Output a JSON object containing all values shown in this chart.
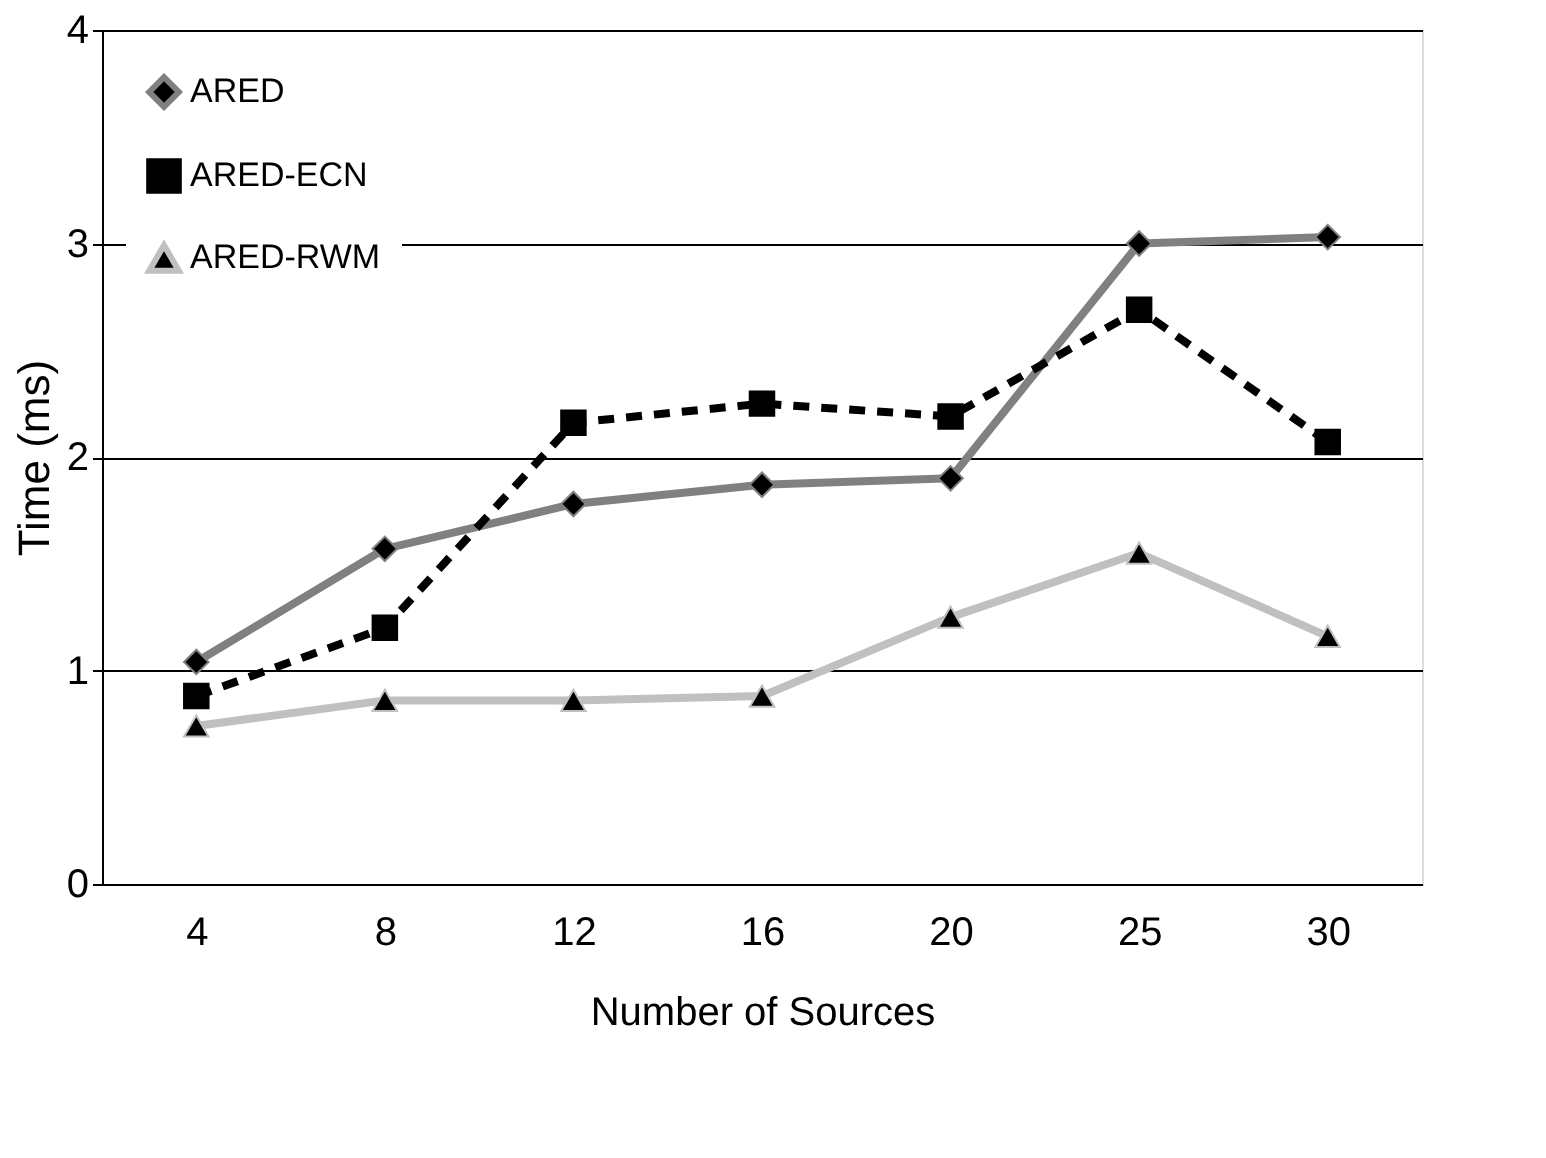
{
  "chart_data": {
    "type": "line",
    "xlabel": "Number of Sources",
    "ylabel": "Time (ms)",
    "categories": [
      "4",
      "8",
      "12",
      "16",
      "20",
      "25",
      "30"
    ],
    "series": [
      {
        "name": "ARED",
        "color": "#808080",
        "line_style": "solid",
        "marker": "diamond",
        "values": [
          1.04,
          1.57,
          1.78,
          1.87,
          1.9,
          3.0,
          3.03
        ]
      },
      {
        "name": "ARED-ECN",
        "color": "#000000",
        "line_style": "dashed",
        "marker": "square",
        "values": [
          0.88,
          1.2,
          2.16,
          2.25,
          2.19,
          2.69,
          2.07
        ]
      },
      {
        "name": "ARED-RWM",
        "color": "#c0c0c0",
        "line_style": "solid",
        "marker": "triangle",
        "values": [
          0.74,
          0.86,
          0.86,
          0.88,
          1.25,
          1.55,
          1.16
        ]
      }
    ],
    "ylim": [
      0,
      4
    ],
    "yticks": [
      0,
      1,
      2,
      3,
      4
    ],
    "grid": "y",
    "legend": "top left"
  }
}
